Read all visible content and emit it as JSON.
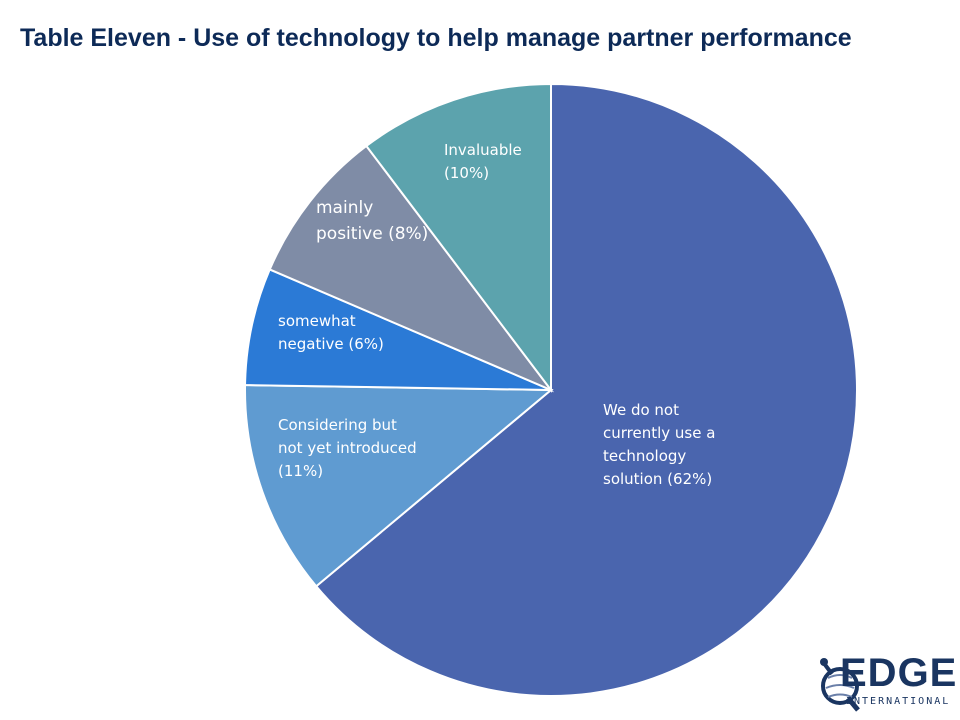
{
  "title": "Table Eleven - Use of technology to help manage partner performance",
  "chart_data": {
    "type": "pie",
    "start_angle_deg": 0,
    "direction": "clockwise",
    "slices": [
      {
        "label_lines": [
          "We do not",
          "currently use a",
          "technology",
          "solution (62%)"
        ],
        "value": 62,
        "color": "#4a65ae"
      },
      {
        "label_lines": [
          "Considering but",
          "not yet introduced",
          "(11%)"
        ],
        "value": 11,
        "color": "#5f9bd1"
      },
      {
        "label_lines": [
          "somewhat",
          "negative (6%)"
        ],
        "value": 6,
        "color": "#2b7ad6"
      },
      {
        "label_lines": [
          "mainly",
          "positive (8%)"
        ],
        "value": 8,
        "color": "#7f8ca6"
      },
      {
        "label_lines": [
          "Invaluable",
          "(10%)"
        ],
        "value": 10,
        "color": "#5ca3ad"
      }
    ]
  },
  "logo": {
    "name": "EDGE",
    "subtitle": "INTERNATIONAL"
  }
}
